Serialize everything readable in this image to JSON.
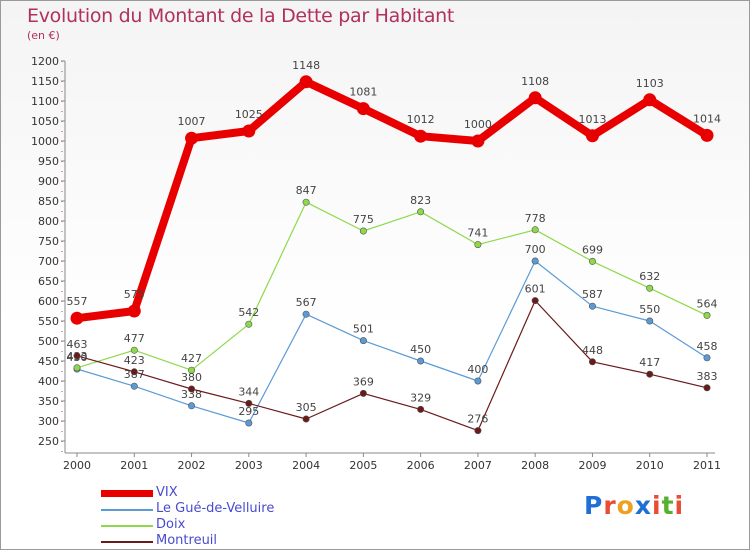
{
  "header": {
    "title": "Evolution du Montant de la Dette par Habitant",
    "subtitle": "(en €)"
  },
  "logo": {
    "letters": [
      "P",
      "r",
      "o",
      "x",
      "i",
      "t",
      "i"
    ],
    "colors": [
      "#1f6fd6",
      "#e94b35",
      "#f0a020",
      "#1f6fd6",
      "#e94b35",
      "#58b030",
      "#e94b35"
    ]
  },
  "chart_data": {
    "type": "line",
    "title": "Evolution du Montant de la Dette par Habitant",
    "subtitle": "(en €)",
    "x": [
      "2000",
      "2001",
      "2002",
      "2003",
      "2004",
      "2005",
      "2006",
      "2007",
      "2008",
      "2009",
      "2010",
      "2011"
    ],
    "ylim": [
      250,
      1200
    ],
    "yticks": [
      250,
      300,
      350,
      400,
      450,
      500,
      550,
      600,
      650,
      700,
      750,
      800,
      850,
      900,
      950,
      1000,
      1050,
      1100,
      1150,
      1200
    ],
    "grid": false,
    "legend_position": "bottom-left",
    "series": [
      {
        "name": "VIX",
        "color": "#e80000",
        "width": "thick",
        "values": [
          557,
          575,
          1007,
          1025,
          1148,
          1081,
          1012,
          1000,
          1108,
          1013,
          1103,
          1014
        ]
      },
      {
        "name": "Le Gué-de-Velluire",
        "color": "#5b9bd5",
        "width": "thin",
        "values": [
          430,
          387,
          338,
          295,
          567,
          501,
          450,
          400,
          700,
          587,
          550,
          458
        ]
      },
      {
        "name": "Doix",
        "color": "#8ed94a",
        "width": "thin",
        "values": [
          433,
          477,
          427,
          542,
          847,
          775,
          823,
          741,
          778,
          699,
          632,
          564
        ]
      },
      {
        "name": "Montreuil",
        "color": "#6b1a1a",
        "width": "thin",
        "values": [
          463,
          423,
          380,
          344,
          305,
          369,
          329,
          276,
          601,
          448,
          417,
          383
        ]
      }
    ]
  }
}
